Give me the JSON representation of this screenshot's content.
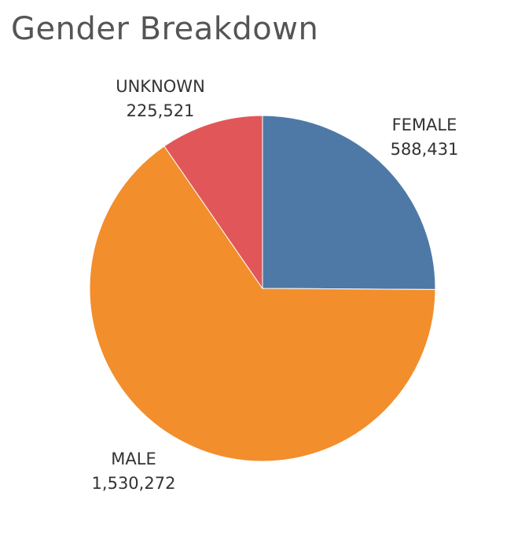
{
  "chart_data": {
    "type": "pie",
    "title": "Gender Breakdown",
    "categories": [
      "FEMALE",
      "MALE",
      "UNKNOWN"
    ],
    "values": [
      588431,
      1530272,
      225521
    ],
    "value_labels": [
      "588,431",
      "1,530,272",
      "225,521"
    ],
    "colors": [
      "#4e79a7",
      "#f28e2b",
      "#e15759"
    ],
    "start_angle_deg": 0,
    "direction": "clockwise"
  }
}
